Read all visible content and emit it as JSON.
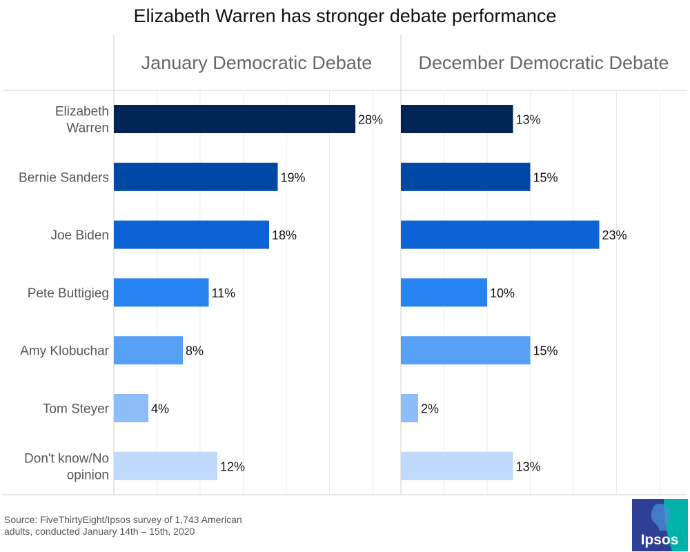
{
  "title": "Elizabeth Warren has stronger debate performance",
  "chart_data": {
    "type": "bar",
    "orientation": "horizontal",
    "categories": [
      [
        "Elizabeth",
        "Warren"
      ],
      [
        "Bernie Sanders"
      ],
      [
        "Joe Biden"
      ],
      [
        "Pete Buttigieg"
      ],
      [
        "Amy Klobuchar"
      ],
      [
        "Tom Steyer"
      ],
      [
        "Don't know/No",
        "opinion"
      ]
    ],
    "colors": [
      "#002554",
      "#0047a6",
      "#0d63d5",
      "#2683f0",
      "#57a0f5",
      "#8bbdf8",
      "#bfdafc"
    ],
    "value_suffix": "%",
    "xlim": [
      0,
      30
    ],
    "panels": [
      {
        "name": "January Democratic Debate",
        "values": [
          28,
          19,
          18,
          11,
          8,
          4,
          12
        ]
      },
      {
        "name": "December Democratic Debate",
        "values": [
          13,
          15,
          23,
          10,
          15,
          2,
          13
        ]
      }
    ]
  },
  "source": "Source: FiveThirtyEight/Ipsos survey of 1,743 American adults, conducted January 14th – 15th, 2020",
  "logo": {
    "text": "Ipsos",
    "bg": "#2e3f94",
    "accent": "#00b2a9"
  }
}
